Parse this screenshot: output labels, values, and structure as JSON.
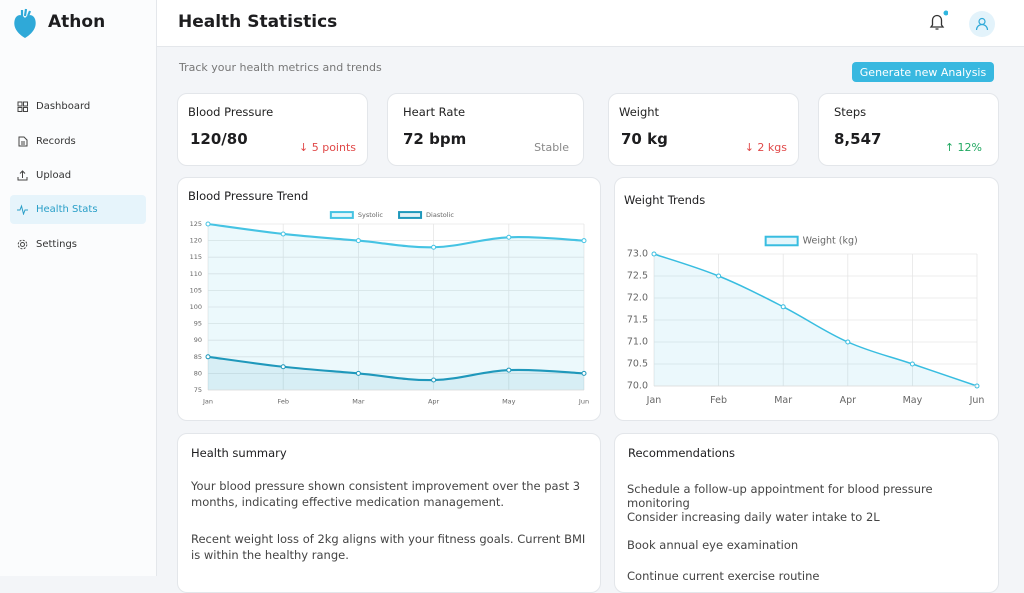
{
  "app": {
    "name": "Athon",
    "nav": [
      "Dashboard",
      "Records",
      "Upload",
      "Health Stats",
      "Settings"
    ]
  },
  "header": {
    "title": "Health Statistics",
    "subtitle": "Track your health metrics and trends",
    "action": "Generate new Analysis"
  },
  "metrics": [
    {
      "label": "Blood Pressure",
      "value": "120/80",
      "change": "↓ 5 points"
    },
    {
      "label": "Heart Rate",
      "value": "72 bpm",
      "change": "Stable"
    },
    {
      "label": "Weight",
      "value": "70 kg",
      "change": "↓ 2 kgs"
    },
    {
      "label": "Steps",
      "value": "8,547",
      "change": "↑ 12%"
    }
  ],
  "chart_data": [
    {
      "type": "line",
      "title": "Blood Pressure Trend",
      "categories": [
        "Jan",
        "Feb",
        "Mar",
        "Apr",
        "May",
        "Jun"
      ],
      "series": [
        {
          "name": "Systolic",
          "color": "#45c3e3",
          "values": [
            125,
            122,
            120,
            118,
            121,
            120
          ]
        },
        {
          "name": "Diastolic",
          "color": "#1f98bb",
          "values": [
            85,
            82,
            80,
            78,
            81,
            80
          ]
        }
      ],
      "ylim": [
        75,
        125
      ],
      "yticks": [
        75,
        80,
        85,
        90,
        95,
        100,
        105,
        110,
        115,
        120,
        125
      ],
      "grid": true,
      "legend": "top"
    },
    {
      "type": "line",
      "title": "Weight Trends",
      "categories": [
        "Jan",
        "Feb",
        "Mar",
        "Apr",
        "May",
        "Jun"
      ],
      "series": [
        {
          "name": "Weight (kg)",
          "color": "#38bde0",
          "values": [
            73.0,
            72.5,
            71.8,
            71.0,
            70.5,
            70.0
          ]
        }
      ],
      "ylim": [
        70,
        73
      ],
      "yticks": [
        {
          "value": 70,
          "label": "70.0"
        },
        {
          "value": 70.5,
          "label": "70.5"
        },
        {
          "value": 71,
          "label": "71.0"
        },
        {
          "value": 71.5,
          "label": "71.5"
        },
        {
          "value": 72,
          "label": "72.0"
        },
        {
          "value": 72.5,
          "label": "72.5"
        },
        {
          "value": 73,
          "label": "73.0"
        }
      ],
      "grid": true,
      "legend": "top"
    }
  ],
  "summary": {
    "title": "Health summary",
    "paragraphs": [
      "Your blood pressure shown consistent improvement over the past 3 months, indicating effective medication management.",
      "Recent weight loss of 2kg aligns with your fitness goals. Current BMI is within the healthy range."
    ]
  },
  "recommendations": {
    "title": "Recommendations",
    "items": [
      "Schedule a follow-up appointment for blood pressure monitoring",
      "Consider increasing daily water intake to 2L",
      "Book annual eye examination",
      "Continue current exercise routine"
    ]
  }
}
